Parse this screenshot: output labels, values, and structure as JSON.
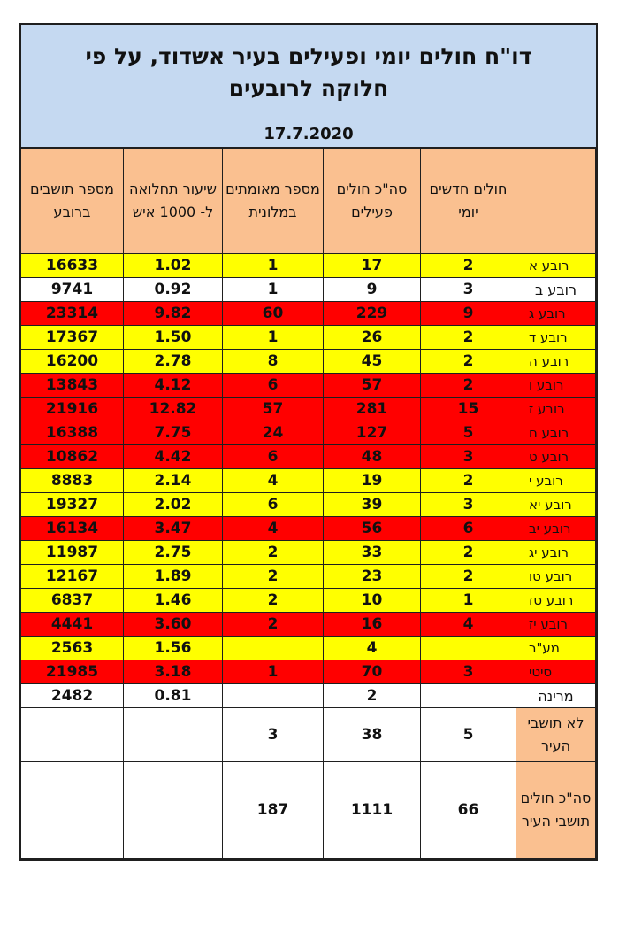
{
  "title": "דו\"ח חולים יומי ופעילים בעיר אשדוד, על פי חלוקה לרובעים",
  "date": "17.7.2020",
  "headers": {
    "district": "",
    "new_daily": "חולים חדשים יומי",
    "total_active": "סה\"כ חולים פעילים",
    "hotel_confirmed": "מספר מאומתים במלונית",
    "rate_per_1000": "שיעור תחלואה ל- 1000 איש",
    "residents": "מספר תושבים ברובע"
  },
  "colors": {
    "header": "#fac090",
    "title": "#c5d9f1",
    "yellow": "#ffff00",
    "red": "#ff0000",
    "white": "#ffffff"
  },
  "rows": [
    {
      "name": "רובע א",
      "new": "2",
      "active": "17",
      "hotel": "1",
      "rate": "1.02",
      "residents": "16633",
      "color": "yellow"
    },
    {
      "name": "רובע ב",
      "new": "3",
      "active": "9",
      "hotel": "1",
      "rate": "0.92",
      "residents": "9741",
      "color": "white"
    },
    {
      "name": "רובע ג",
      "new": "9",
      "active": "229",
      "hotel": "60",
      "rate": "9.82",
      "residents": "23314",
      "color": "red"
    },
    {
      "name": "רובע ד",
      "new": "2",
      "active": "26",
      "hotel": "1",
      "rate": "1.50",
      "residents": "17367",
      "color": "yellow"
    },
    {
      "name": "רובע ה",
      "new": "2",
      "active": "45",
      "hotel": "8",
      "rate": "2.78",
      "residents": "16200",
      "color": "yellow"
    },
    {
      "name": "רובע ו",
      "new": "2",
      "active": "57",
      "hotel": "6",
      "rate": "4.12",
      "residents": "13843",
      "color": "red"
    },
    {
      "name": "רובע ז",
      "new": "15",
      "active": "281",
      "hotel": "57",
      "rate": "12.82",
      "residents": "21916",
      "color": "red"
    },
    {
      "name": "רובע ח",
      "new": "5",
      "active": "127",
      "hotel": "24",
      "rate": "7.75",
      "residents": "16388",
      "color": "red"
    },
    {
      "name": "רובע ט",
      "new": "3",
      "active": "48",
      "hotel": "6",
      "rate": "4.42",
      "residents": "10862",
      "color": "red"
    },
    {
      "name": "רובע י",
      "new": "2",
      "active": "19",
      "hotel": "4",
      "rate": "2.14",
      "residents": "8883",
      "color": "yellow"
    },
    {
      "name": "רובע יא",
      "new": "3",
      "active": "39",
      "hotel": "6",
      "rate": "2.02",
      "residents": "19327",
      "color": "yellow"
    },
    {
      "name": "רובע יב",
      "new": "6",
      "active": "56",
      "hotel": "4",
      "rate": "3.47",
      "residents": "16134",
      "color": "red"
    },
    {
      "name": "רובע יג",
      "new": "2",
      "active": "33",
      "hotel": "2",
      "rate": "2.75",
      "residents": "11987",
      "color": "yellow"
    },
    {
      "name": "רובע טו",
      "new": "2",
      "active": "23",
      "hotel": "2",
      "rate": "1.89",
      "residents": "12167",
      "color": "yellow"
    },
    {
      "name": "רובע טז",
      "new": "1",
      "active": "10",
      "hotel": "2",
      "rate": "1.46",
      "residents": "6837",
      "color": "yellow"
    },
    {
      "name": "רובע יז",
      "new": "4",
      "active": "16",
      "hotel": "2",
      "rate": "3.60",
      "residents": "4441",
      "color": "red"
    },
    {
      "name": "מע\"ר",
      "new": "",
      "active": "4",
      "hotel": "",
      "rate": "1.56",
      "residents": "2563",
      "color": "yellow"
    },
    {
      "name": "סיטי",
      "new": "3",
      "active": "70",
      "hotel": "1",
      "rate": "3.18",
      "residents": "21985",
      "color": "red"
    },
    {
      "name": "מרינה",
      "new": "",
      "active": "2",
      "hotel": "",
      "rate": "0.81",
      "residents": "2482",
      "color": "white"
    }
  ],
  "non_residents": {
    "name": "לא תושבי העיר",
    "new": "5",
    "active": "38",
    "hotel": "3",
    "rate": "",
    "residents": ""
  },
  "totals": {
    "name": "סה\"כ חולים תושבי העיר",
    "new": "66",
    "active": "1111",
    "hotel": "187",
    "rate": "",
    "residents": ""
  }
}
